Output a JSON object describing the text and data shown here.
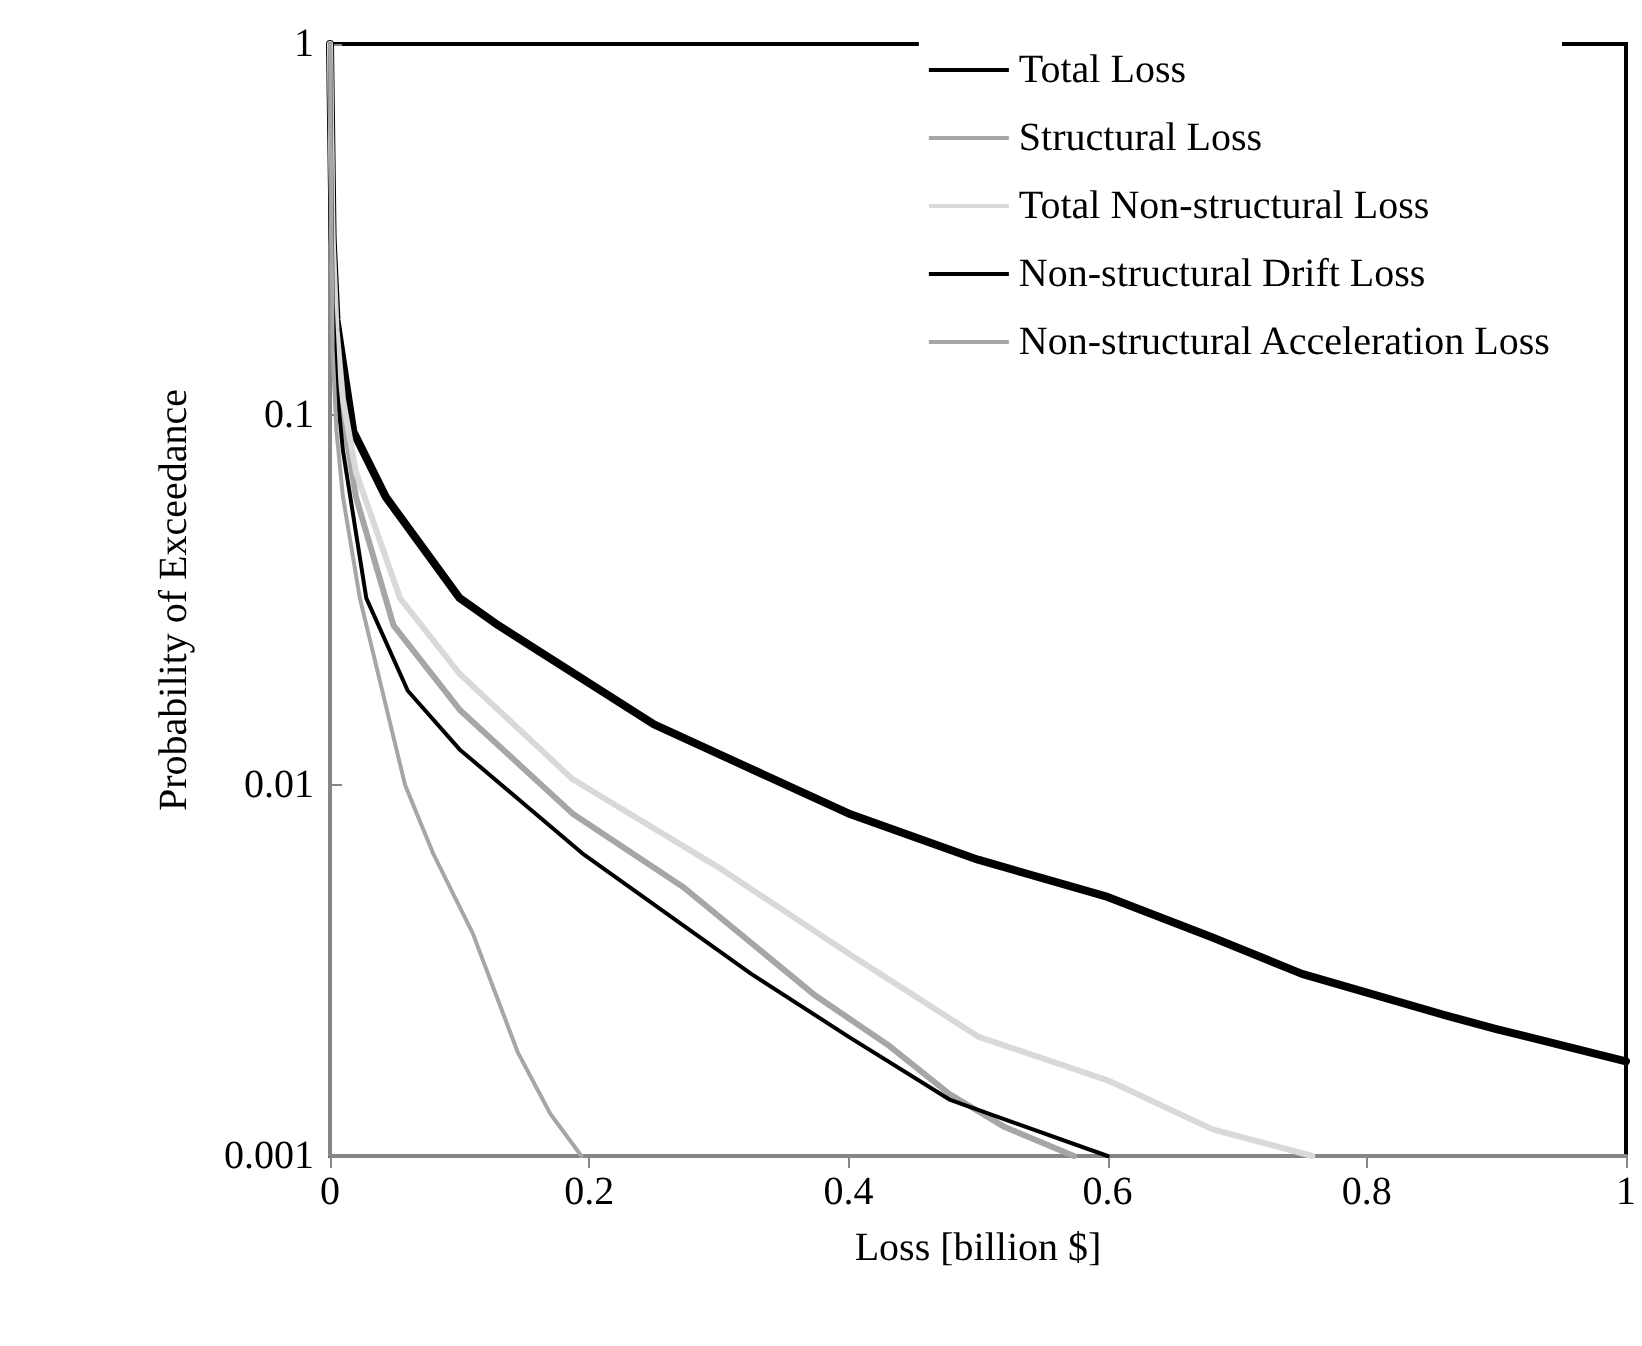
{
  "chart_data": {
    "type": "line",
    "xlabel": "Loss [billion $]",
    "ylabel": "Probability of Exceedance",
    "log": "y",
    "grid": false,
    "legend": "top right",
    "marker": "none",
    "line_style": "solid",
    "xlim": [
      0,
      1
    ],
    "xticks": [
      0,
      0.2,
      0.4,
      0.6,
      0.8,
      1
    ],
    "ylim": [
      0.001,
      1
    ],
    "yticks": [
      0.001,
      0.01,
      0.1,
      1
    ],
    "series": [
      {
        "name": "Total Loss",
        "color": "#000000",
        "x": [
          0,
          0.002,
          0.005,
          0.018,
          0.043,
          0.1,
          0.13,
          0.25,
          0.4,
          0.5,
          0.6,
          0.68,
          0.75,
          0.86,
          0.9,
          1
        ],
        "values": [
          1,
          0.3,
          0.18,
          0.09,
          0.06,
          0.032,
          0.027,
          0.0146,
          0.0084,
          0.0063,
          0.005,
          0.0039,
          0.0031,
          0.0024,
          0.0022,
          0.0018
        ]
      },
      {
        "name": "Structural Loss",
        "color": "#a6a6a6",
        "x": [
          0,
          0.002,
          0.005,
          0.01,
          0.02,
          0.049,
          0.1,
          0.187,
          0.273,
          0.375,
          0.43,
          0.478,
          0.52,
          0.574
        ],
        "values": [
          1,
          0.25,
          0.15,
          0.1,
          0.06,
          0.027,
          0.016,
          0.0084,
          0.0053,
          0.0027,
          0.002,
          0.00147,
          0.0012,
          0.001
        ]
      },
      {
        "name": "Total Non-structural Loss",
        "color": "#d9d9d9",
        "x": [
          0,
          0.002,
          0.005,
          0.01,
          0.02,
          0.054,
          0.1,
          0.187,
          0.3,
          0.401,
          0.5,
          0.6,
          0.681,
          0.758
        ],
        "values": [
          1,
          0.3,
          0.17,
          0.11,
          0.07,
          0.032,
          0.02,
          0.0104,
          0.006,
          0.0035,
          0.0021,
          0.0016,
          0.00118,
          0.001
        ]
      },
      {
        "name": "Non-structural Drift Loss",
        "color": "#000000",
        "x": [
          0,
          0.002,
          0.005,
          0.01,
          0.028,
          0.06,
          0.1,
          0.196,
          0.325,
          0.4,
          0.478,
          0.6
        ],
        "values": [
          1,
          0.2,
          0.12,
          0.08,
          0.032,
          0.018,
          0.0125,
          0.0065,
          0.0031,
          0.0021,
          0.00142,
          0.001
        ]
      },
      {
        "name": "Non-structural Acceleration Loss",
        "color": "#a6a6a6",
        "x": [
          0,
          0.002,
          0.005,
          0.01,
          0.023,
          0.058,
          0.08,
          0.11,
          0.145,
          0.17,
          0.194
        ],
        "values": [
          1,
          0.15,
          0.09,
          0.06,
          0.032,
          0.01,
          0.0065,
          0.004,
          0.0019,
          0.0013,
          0.001
        ]
      }
    ]
  }
}
